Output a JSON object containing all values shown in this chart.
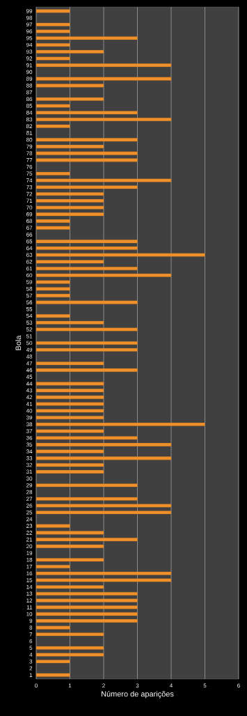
{
  "chart_data": {
    "type": "bar",
    "orientation": "horizontal",
    "xlabel": "Número de aparições",
    "ylabel": "Bola",
    "categories": [
      "99",
      "98",
      "97",
      "96",
      "95",
      "94",
      "93",
      "92",
      "91",
      "90",
      "89",
      "88",
      "87",
      "86",
      "85",
      "84",
      "83",
      "82",
      "81",
      "80",
      "79",
      "78",
      "77",
      "76",
      "75",
      "74",
      "73",
      "72",
      "71",
      "70",
      "69",
      "68",
      "67",
      "66",
      "65",
      "64",
      "63",
      "62",
      "61",
      "60",
      "59",
      "58",
      "57",
      "56",
      "55",
      "54",
      "53",
      "52",
      "51",
      "50",
      "49",
      "48",
      "47",
      "46",
      "45",
      "44",
      "43",
      "42",
      "41",
      "40",
      "39",
      "38",
      "37",
      "36",
      "35",
      "34",
      "33",
      "32",
      "31",
      "30",
      "29",
      "28",
      "27",
      "26",
      "25",
      "24",
      "23",
      "22",
      "21",
      "20",
      "19",
      "18",
      "17",
      "16",
      "15",
      "14",
      "13",
      "12",
      "11",
      "10",
      "9",
      "8",
      "7",
      "6",
      "5",
      "4",
      "3",
      "2",
      "1"
    ],
    "values": [
      1,
      0,
      1,
      1,
      3,
      1,
      2,
      1,
      4,
      0,
      4,
      2,
      0,
      2,
      1,
      3,
      4,
      1,
      0,
      3,
      2,
      3,
      3,
      0,
      1,
      4,
      3,
      2,
      2,
      2,
      2,
      1,
      1,
      0,
      3,
      3,
      5,
      2,
      3,
      4,
      1,
      1,
      1,
      3,
      0,
      1,
      2,
      3,
      0,
      3,
      3,
      0,
      2,
      3,
      0,
      2,
      2,
      2,
      2,
      2,
      2,
      5,
      2,
      3,
      4,
      2,
      4,
      2,
      2,
      0,
      3,
      0,
      3,
      4,
      4,
      0,
      1,
      2,
      3,
      2,
      0,
      2,
      1,
      4,
      4,
      2,
      3,
      3,
      3,
      3,
      3,
      1,
      2,
      0,
      2,
      2,
      1,
      0,
      1
    ],
    "color": "#f0902a",
    "xlim": [
      0,
      6
    ],
    "xticks": [
      0,
      1,
      2,
      3,
      4,
      5,
      6
    ],
    "grid": "x"
  }
}
